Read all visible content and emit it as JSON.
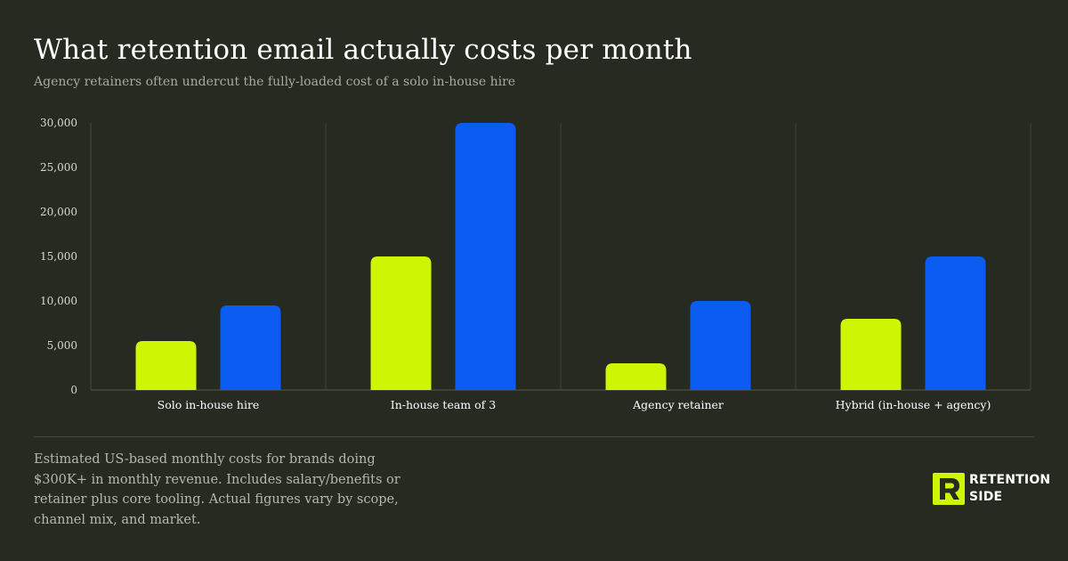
{
  "title": "What retention email actually costs per month",
  "subtitle": "Agency retainers often undercut the fully-loaded cost of a solo in-house hire",
  "footnote": "Estimated US-based monthly costs for brands doing $300K+ in monthly revenue. Includes salary/benefits or retainer plus core tooling. Actual figures vary by scope, channel mix, and market.",
  "logo": {
    "line1": "RETENTION",
    "line2": "SIDE",
    "accent": "#cdf504"
  },
  "chart_data": {
    "type": "bar",
    "categories": [
      "Solo in-house hire",
      "In-house team of 3",
      "Agency retainer",
      "Hybrid (in-house + agency)"
    ],
    "series": [
      {
        "color": "#cdf504",
        "values": [
          5500,
          15000,
          3000,
          8000
        ]
      },
      {
        "color": "#0b5cf0",
        "values": [
          9500,
          30000,
          10000,
          15000
        ]
      }
    ],
    "yticks": [
      0,
      5000,
      10000,
      15000,
      20000,
      25000,
      30000
    ],
    "ytick_labels": [
      "0",
      "5,000",
      "10,000",
      "15,000",
      "20,000",
      "25,000",
      "30,000"
    ],
    "ylim": [
      0,
      30000
    ],
    "grid": "vertical category separators"
  }
}
